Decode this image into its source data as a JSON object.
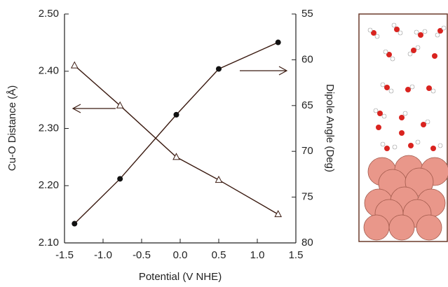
{
  "chart_data": {
    "type": "line",
    "xlabel": "Potential (V NHE)",
    "ylabel": "Cu-O Distance (Å)",
    "y2label": "Dipole Angle (Deg)",
    "xlim": [
      -1.5,
      1.5
    ],
    "xticks": [
      {
        "value": -1.5,
        "label": "-1.5"
      },
      {
        "value": -1,
        "label": "-1.0"
      },
      {
        "value": -0.5,
        "label": "-0.5"
      },
      {
        "value": 0,
        "label": "0.0"
      },
      0.5,
      {
        "value": 1,
        "label": "1.0"
      },
      1.5
    ],
    "ylim": [
      2.1,
      2.5
    ],
    "yticks": [
      {
        "value": 2.1,
        "label": "2.10"
      },
      {
        "value": 2.2,
        "label": "2.20"
      },
      {
        "value": 2.3,
        "label": "2.30"
      },
      {
        "value": 2.4,
        "label": "2.40"
      },
      {
        "value": 2.5,
        "label": "2.50"
      }
    ],
    "y2lim": [
      80,
      55
    ],
    "y2ticks": [
      55,
      60,
      65,
      70,
      75,
      80
    ],
    "series": [
      {
        "color": "#3a1a10",
        "marker": "open-triangle",
        "x": [
          -1.37,
          -0.78,
          -0.05,
          0.5,
          1.27
        ],
        "values": [
          2.41,
          2.34,
          2.25,
          2.21,
          2.15
        ]
      },
      {
        "color": "#3a1a10",
        "marker": "filled-circle",
        "axis": "y2",
        "x": [
          -1.37,
          -0.78,
          -0.05,
          0.5,
          1.27
        ],
        "values": [
          77.9,
          73.0,
          66.0,
          61.0,
          58.1
        ]
      }
    ]
  }
}
